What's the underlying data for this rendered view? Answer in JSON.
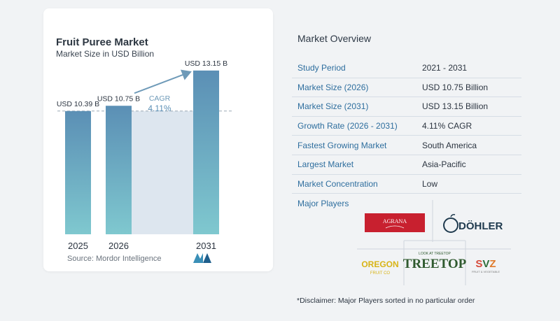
{
  "chart_data": {
    "type": "bar",
    "title": "Fruit Puree Market",
    "subtitle": "Market Size in USD Billion",
    "categories": [
      "2025",
      "2026",
      "2031"
    ],
    "values": [
      10.39,
      10.75,
      13.15
    ],
    "value_labels": [
      "USD 10.39 B",
      "USD 10.75 B",
      "USD 13.15 B"
    ],
    "annotation": {
      "label": "CAGR",
      "value": "4.11%"
    },
    "colors": {
      "bar_top": "#5b8fb5",
      "bar_bottom": "#7fc8cf",
      "band": "#dde6ef",
      "arrow": "#6e9ab8"
    }
  },
  "source": "Source:  Mordor Intelligence",
  "overview": {
    "title": "Market Overview",
    "rows": [
      {
        "label": "Study Period",
        "value": "2021 - 2031"
      },
      {
        "label": "Market Size (2026)",
        "value": "USD 10.75 Billion"
      },
      {
        "label": "Market Size (2031)",
        "value": "USD 13.15 Billion"
      },
      {
        "label": "Growth Rate (2026 - 2031)",
        "value": "4.11% CAGR"
      },
      {
        "label": "Fastest Growing Market",
        "value": "South America"
      },
      {
        "label": "Largest Market",
        "value": "Asia-Pacific"
      },
      {
        "label": "Market Concentration",
        "value": "Low"
      }
    ],
    "players_label": "Major Players",
    "players": [
      "AGRANA",
      "DÖHLER",
      "OREGON FRUIT CO",
      "TREETOP",
      "SVZ"
    ],
    "disclaimer": "*Disclaimer: Major Players sorted in no particular order"
  }
}
